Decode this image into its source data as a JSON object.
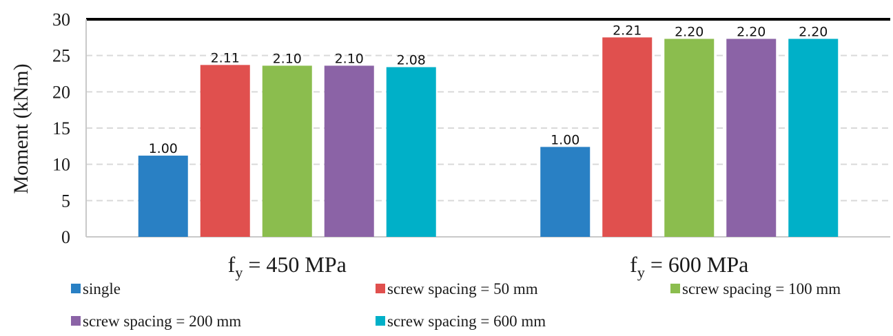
{
  "chart_data": {
    "type": "bar",
    "ylabel": "Moment (kNm)",
    "ylim": [
      0,
      30
    ],
    "yticks": [
      0,
      5,
      10,
      15,
      20,
      25,
      30
    ],
    "grid": "horizontal-dashed",
    "legend_position": "bottom",
    "categories": [
      {
        "base": "f",
        "sub": "y",
        "rest": " = 450 MPa"
      },
      {
        "base": "f",
        "sub": "y",
        "rest": " = 600 MPa"
      }
    ],
    "series": [
      {
        "name": "single",
        "color": "#2980c4",
        "values": [
          11.2,
          12.4
        ],
        "labels": [
          "1.00",
          "1.00"
        ]
      },
      {
        "name": "screw spacing = 50 mm",
        "color": "#e0504e",
        "values": [
          23.7,
          27.5
        ],
        "labels": [
          "2.11",
          "2.21"
        ]
      },
      {
        "name": "screw spacing = 100 mm",
        "color": "#8bbd4e",
        "values": [
          23.6,
          27.3
        ],
        "labels": [
          "2.10",
          "2.20"
        ]
      },
      {
        "name": "screw spacing = 200 mm",
        "color": "#8b63a6",
        "values": [
          23.6,
          27.3
        ],
        "labels": [
          "2.10",
          "2.20"
        ]
      },
      {
        "name": "screw spacing = 600 mm",
        "color": "#00b0c8",
        "values": [
          23.4,
          27.3
        ],
        "labels": [
          "2.08",
          "2.20"
        ]
      }
    ]
  }
}
